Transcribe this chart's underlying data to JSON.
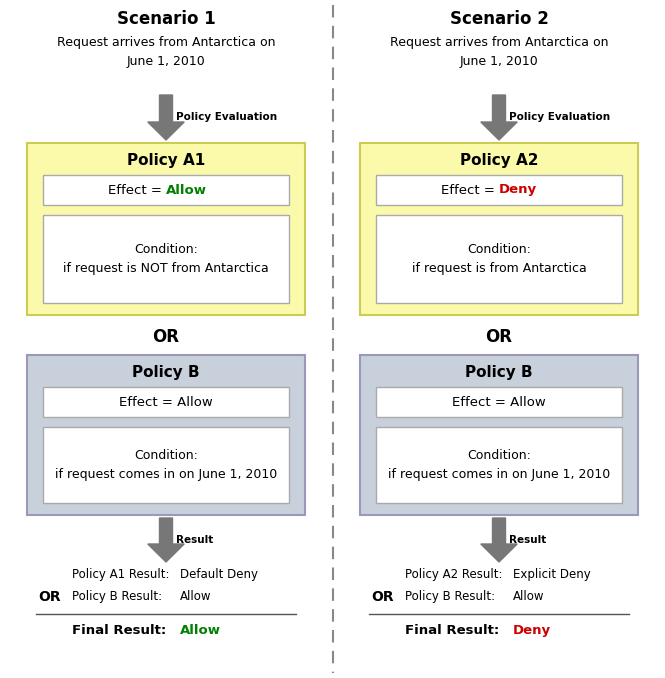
{
  "title_s1": "Scenario 1",
  "title_s2": "Scenario 2",
  "request_text": "Request arrives from Antarctica on\nJune 1, 2010",
  "policy_eval_label": "Policy Evaluation",
  "result_label": "Result",
  "or_label": "OR",
  "s1_policyA_title": "Policy A1",
  "s1_policyA_effect_prefix": "Effect = ",
  "s1_policyA_effect_value": "Allow",
  "s1_policyA_effect_color": "#008000",
  "s1_policyA_condition": "Condition:\nif request is NOT from Antarctica",
  "s1_policyA_bg": "#FAFAAA",
  "s2_policyA_title": "Policy A2",
  "s2_policyA_effect_prefix": "Effect = ",
  "s2_policyA_effect_value": "Deny",
  "s2_policyA_effect_color": "#CC0000",
  "s2_policyA_condition": "Condition:\nif request is from Antarctica",
  "s2_policyA_bg": "#FAFAAA",
  "policyB_title": "Policy B",
  "policyB_effect": "Effect = Allow",
  "policyB_condition": "Condition:\nif request comes in on June 1, 2010",
  "policyB_bg": "#C8D0DC",
  "s1_result1_label": "Policy A1 Result:",
  "s1_result1_value": "Default Deny",
  "s1_result2_label": "Policy B Result:",
  "s1_result2_value": "Allow",
  "s1_final_label": "Final Result:",
  "s1_final_value": "Allow",
  "s1_final_color": "#008000",
  "s2_result1_label": "Policy A2 Result:",
  "s2_result1_value": "Explicit Deny",
  "s2_result2_label": "Policy B Result:",
  "s2_result2_value": "Allow",
  "s2_final_label": "Final Result:",
  "s2_final_value": "Deny",
  "s2_final_color": "#CC0000",
  "bg_color": "#FFFFFF",
  "divider_color": "#888888",
  "arrow_color": "#777777",
  "policyA_border": "#CCCC55",
  "policyB_border": "#9999BB",
  "inner_box_border": "#AAAAAA"
}
